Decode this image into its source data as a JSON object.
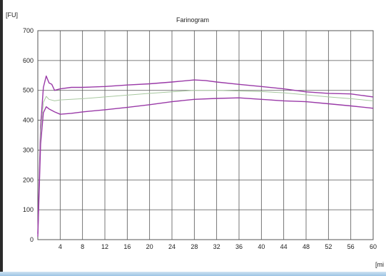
{
  "chart_data": {
    "type": "line",
    "title": "Farinogram",
    "ylabel": "[FU]",
    "xlabel": "[mi",
    "xlim": [
      0,
      60
    ],
    "ylim": [
      0,
      700
    ],
    "x_ticks": [
      0,
      4,
      8,
      12,
      16,
      20,
      24,
      28,
      32,
      36,
      40,
      44,
      48,
      52,
      56,
      60
    ],
    "y_ticks": [
      0,
      100,
      200,
      300,
      400,
      500,
      600,
      700
    ],
    "grid": true,
    "colors": {
      "band": "#9a3aa8",
      "median": "#a8c8a0",
      "grid": "#555555",
      "axis_text": "#222222"
    },
    "series": [
      {
        "role": "upper",
        "x": [
          0,
          0.5,
          1,
          1.5,
          2,
          2.5,
          3,
          4,
          6,
          8,
          12,
          16,
          20,
          24,
          28,
          30,
          32,
          36,
          40,
          44,
          48,
          52,
          56,
          60
        ],
        "y": [
          20,
          380,
          510,
          548,
          525,
          520,
          500,
          505,
          510,
          510,
          513,
          518,
          522,
          528,
          535,
          533,
          528,
          520,
          513,
          505,
          495,
          490,
          488,
          478
        ]
      },
      {
        "role": "median",
        "x": [
          0,
          0.5,
          1,
          1.5,
          2,
          3,
          4,
          8,
          12,
          16,
          20,
          24,
          28,
          32,
          36,
          40,
          44,
          48,
          52,
          56,
          60
        ],
        "y": [
          15,
          360,
          460,
          480,
          470,
          465,
          468,
          472,
          478,
          484,
          490,
          495,
          500,
          500,
          498,
          496,
          492,
          485,
          478,
          472,
          465
        ]
      },
      {
        "role": "lower",
        "x": [
          0,
          0.5,
          1,
          1.5,
          2,
          3,
          4,
          6,
          8,
          12,
          16,
          20,
          24,
          28,
          32,
          36,
          40,
          44,
          48,
          52,
          56,
          60
        ],
        "y": [
          10,
          320,
          425,
          445,
          438,
          428,
          420,
          423,
          428,
          435,
          443,
          452,
          462,
          470,
          473,
          475,
          470,
          465,
          462,
          455,
          448,
          440
        ]
      }
    ]
  }
}
